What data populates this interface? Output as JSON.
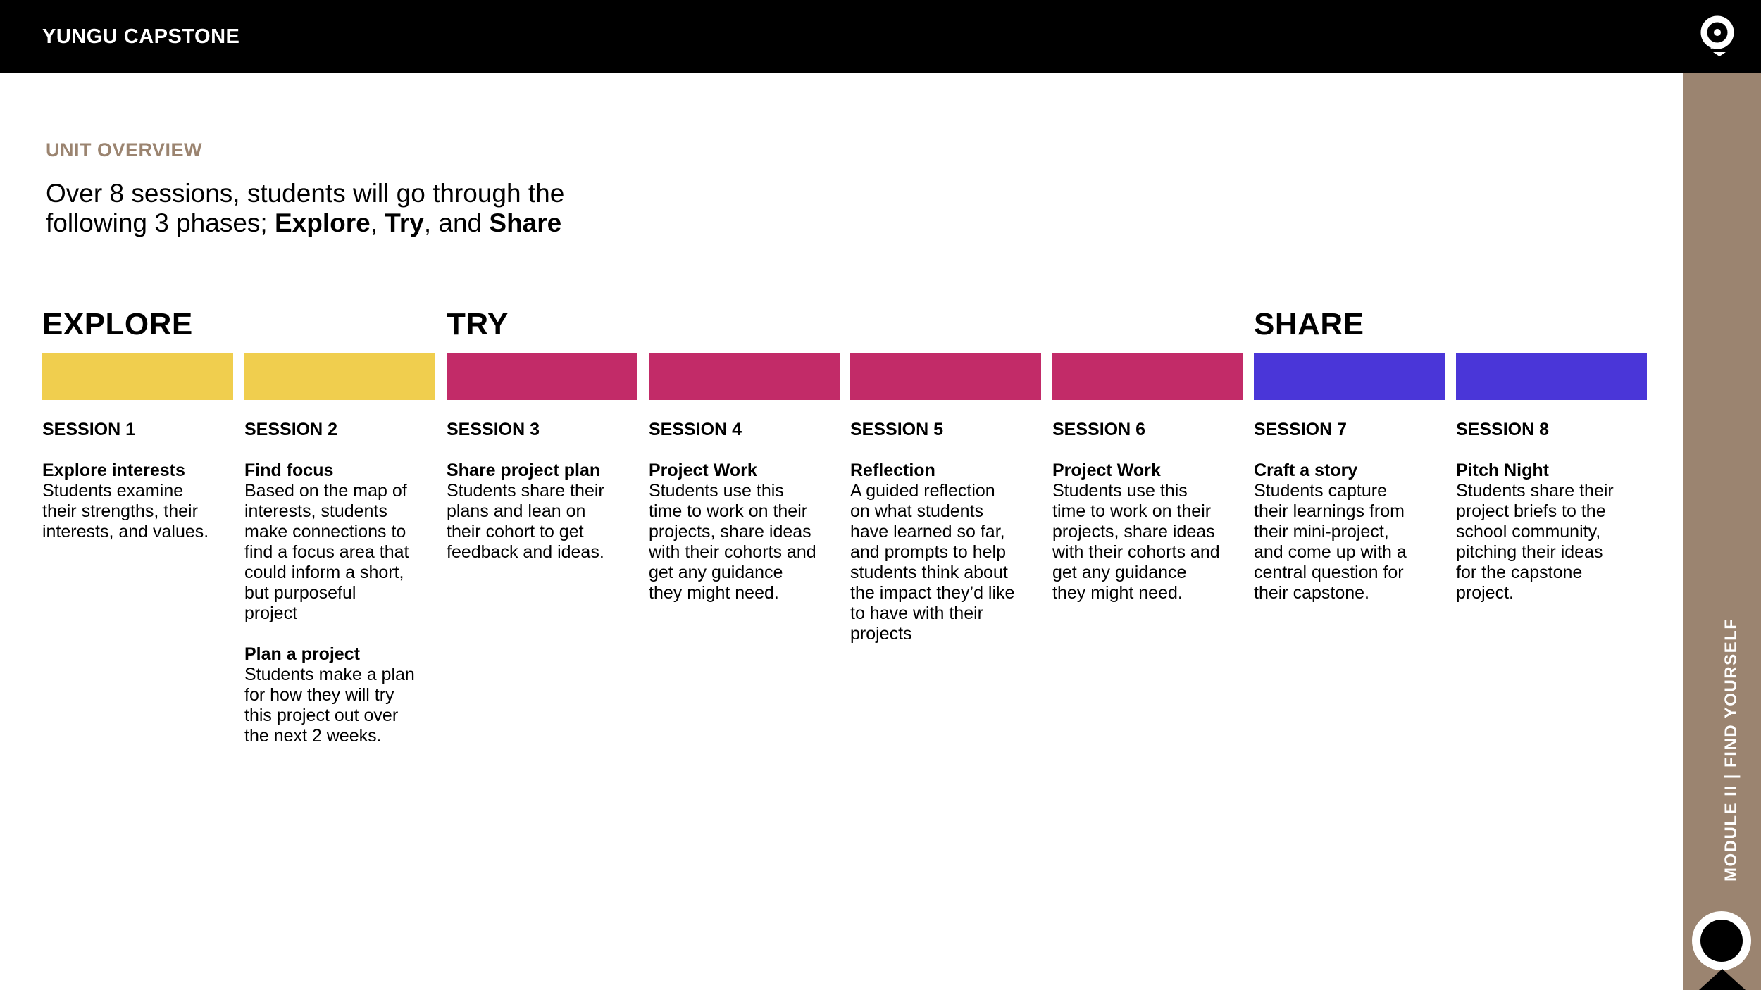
{
  "header": {
    "brand": "YUNGU CAPSTONE"
  },
  "sidebar": {
    "label": "MODULE II | FIND YOURSELF"
  },
  "overview": {
    "kicker": "UNIT OVERVIEW",
    "intro_line1": "Over 8 sessions, students will go through the",
    "intro_prefix": "following 3 phases; ",
    "intro_explore": "Explore",
    "intro_sep1": ", ",
    "intro_try": "Try",
    "intro_sep2": ", and ",
    "intro_share": "Share"
  },
  "phases": {
    "explore": "EXPLORE",
    "try": "TRY",
    "share": "SHARE"
  },
  "colors": {
    "explore": "#f0ce4e",
    "try": "#c22b68",
    "share": "#4a36d8",
    "accent": "#9b8470"
  },
  "sessions": [
    {
      "label": "SESSION 1",
      "title": "Explore interests",
      "desc": "Students examine\ntheir strengths, their\ninterests, and values."
    },
    {
      "label": "SESSION 2",
      "title": "Find focus",
      "desc": "Based on the map of\ninterests, students\nmake connections to\nfind a focus area that\ncould inform a short,\nbut purposeful\nproject",
      "title2": "Plan a project",
      "desc2": "Students make a plan\nfor how they will try\nthis project out over\nthe next 2 weeks."
    },
    {
      "label": "SESSION 3",
      "title": "Share project plan",
      "desc": "Students share their\nplans and lean on\ntheir cohort to get\nfeedback and ideas."
    },
    {
      "label": "SESSION 4",
      "title": "Project Work",
      "desc": "Students use this\ntime to work on their\nprojects, share ideas\nwith their cohorts and\nget any guidance\nthey might need."
    },
    {
      "label": "SESSION 5",
      "title": "Reflection",
      "desc": "A guided reflection\non what students\nhave learned so far,\nand prompts to help\nstudents think about\nthe impact they’d like\nto have with their\nprojects"
    },
    {
      "label": "SESSION 6",
      "title": "Project Work",
      "desc": "Students use this\ntime to work on their\nprojects, share ideas\nwith their cohorts and\nget any guidance\nthey might need."
    },
    {
      "label": "SESSION 7",
      "title": "Craft a story",
      "desc": "Students capture\ntheir learnings from\ntheir mini-project,\nand come up with a\ncentral question for\ntheir capstone."
    },
    {
      "label": "SESSION 8",
      "title": "Pitch Night",
      "desc": "Students share their\nproject briefs to the\nschool community,\npitching their ideas\nfor the capstone\nproject."
    }
  ]
}
